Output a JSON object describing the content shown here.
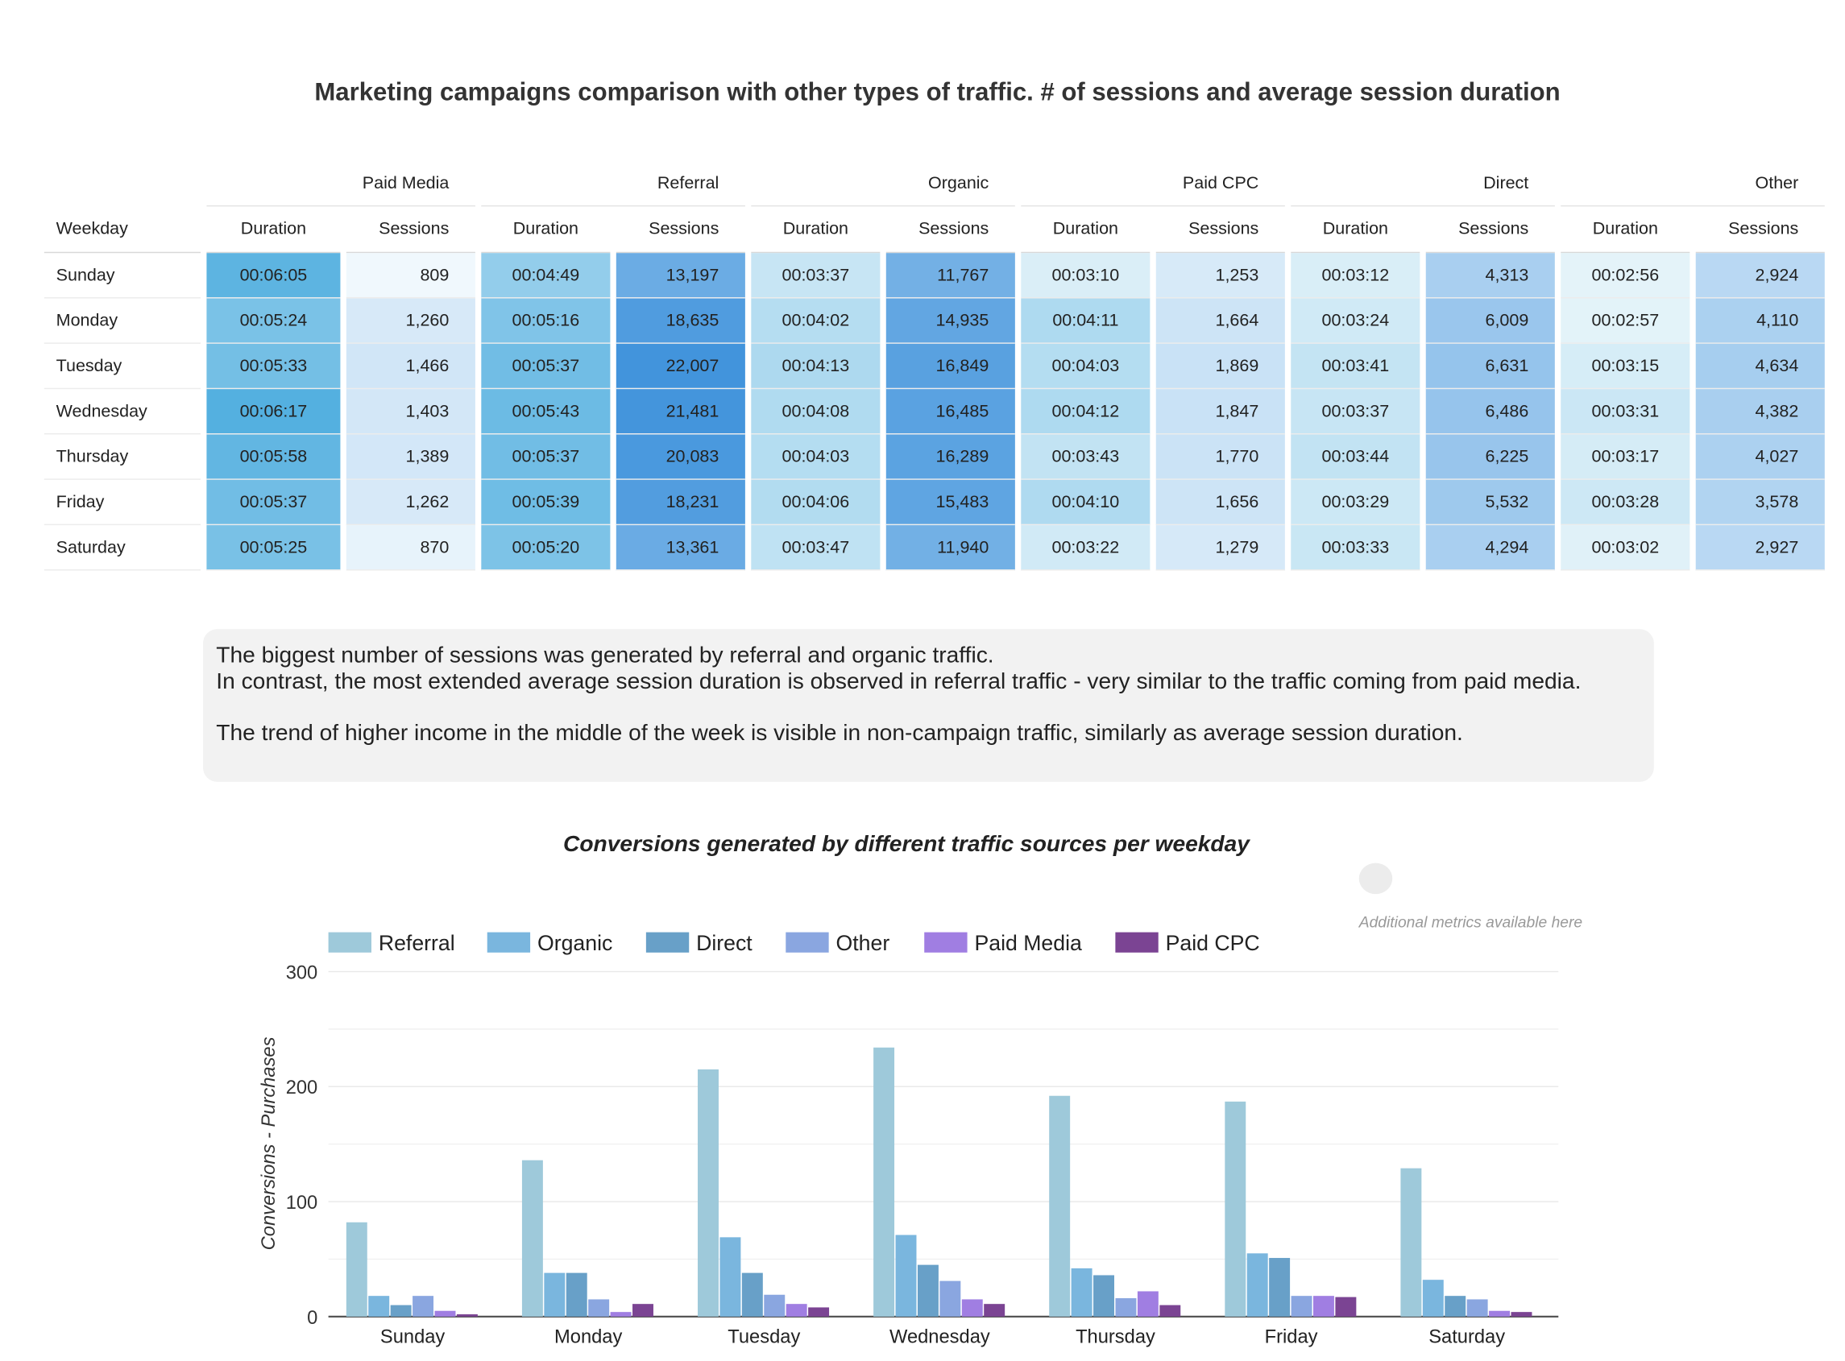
{
  "table": {
    "title": "Marketing campaigns comparison with other types of traffic. # of sessions and average session duration",
    "weekday_header": "Weekday",
    "duration_header": "Duration",
    "sessions_header": "Sessions",
    "groups": [
      "Paid Media",
      "Referral",
      "Organic",
      "Paid CPC",
      "Direct",
      "Other"
    ],
    "rows": [
      {
        "day": "Sunday",
        "cells": [
          [
            "00:06:05",
            "809"
          ],
          [
            "00:04:49",
            "13,197"
          ],
          [
            "00:03:37",
            "11,767"
          ],
          [
            "00:03:10",
            "1,253"
          ],
          [
            "00:03:12",
            "4,313"
          ],
          [
            "00:02:56",
            "2,924"
          ]
        ]
      },
      {
        "day": "Monday",
        "cells": [
          [
            "00:05:24",
            "1,260"
          ],
          [
            "00:05:16",
            "18,635"
          ],
          [
            "00:04:02",
            "14,935"
          ],
          [
            "00:04:11",
            "1,664"
          ],
          [
            "00:03:24",
            "6,009"
          ],
          [
            "00:02:57",
            "4,110"
          ]
        ]
      },
      {
        "day": "Tuesday",
        "cells": [
          [
            "00:05:33",
            "1,466"
          ],
          [
            "00:05:37",
            "22,007"
          ],
          [
            "00:04:13",
            "16,849"
          ],
          [
            "00:04:03",
            "1,869"
          ],
          [
            "00:03:41",
            "6,631"
          ],
          [
            "00:03:15",
            "4,634"
          ]
        ]
      },
      {
        "day": "Wednesday",
        "cells": [
          [
            "00:06:17",
            "1,403"
          ],
          [
            "00:05:43",
            "21,481"
          ],
          [
            "00:04:08",
            "16,485"
          ],
          [
            "00:04:12",
            "1,847"
          ],
          [
            "00:03:37",
            "6,486"
          ],
          [
            "00:03:31",
            "4,382"
          ]
        ]
      },
      {
        "day": "Thursday",
        "cells": [
          [
            "00:05:58",
            "1,389"
          ],
          [
            "00:05:37",
            "20,083"
          ],
          [
            "00:04:03",
            "16,289"
          ],
          [
            "00:03:43",
            "1,770"
          ],
          [
            "00:03:44",
            "6,225"
          ],
          [
            "00:03:17",
            "4,027"
          ]
        ]
      },
      {
        "day": "Friday",
        "cells": [
          [
            "00:05:37",
            "1,262"
          ],
          [
            "00:05:39",
            "18,231"
          ],
          [
            "00:04:06",
            "15,483"
          ],
          [
            "00:04:10",
            "1,656"
          ],
          [
            "00:03:29",
            "5,532"
          ],
          [
            "00:03:28",
            "3,578"
          ]
        ]
      },
      {
        "day": "Saturday",
        "cells": [
          [
            "00:05:25",
            "870"
          ],
          [
            "00:05:20",
            "13,361"
          ],
          [
            "00:03:47",
            "11,940"
          ],
          [
            "00:03:22",
            "1,279"
          ],
          [
            "00:03:33",
            "4,294"
          ],
          [
            "00:03:02",
            "2,927"
          ]
        ]
      }
    ]
  },
  "note": {
    "line1": "The biggest number of sessions was generated by referral and organic traffic.",
    "line2": "In contrast, the most extended average session duration is observed in referral traffic - very similar to the traffic coming from paid media.",
    "line3": "The trend of higher income in the middle of the week is visible in non-campaign traffic, similarly as average session duration."
  },
  "toggle": {
    "label": "Additional metrics available here"
  },
  "chart_data": {
    "type": "bar",
    "title": "Conversions generated by different traffic sources per weekday",
    "xlabel": "",
    "ylabel": "Conversions - Purchases",
    "ylim": [
      0,
      300
    ],
    "yticks": [
      0,
      100,
      200,
      300
    ],
    "grid": true,
    "legend": "top-left",
    "categories": [
      "Sunday",
      "Monday",
      "Tuesday",
      "Wednesday",
      "Thursday",
      "Friday",
      "Saturday"
    ],
    "series": [
      {
        "name": "Referral",
        "color": "#9ec9da",
        "values": [
          82,
          136,
          215,
          234,
          192,
          187,
          129
        ]
      },
      {
        "name": "Organic",
        "color": "#7ab6de",
        "values": [
          18,
          38,
          69,
          71,
          42,
          55,
          32
        ]
      },
      {
        "name": "Direct",
        "color": "#68a0c8",
        "values": [
          10,
          38,
          38,
          45,
          36,
          51,
          18
        ]
      },
      {
        "name": "Other",
        "color": "#8aa6e0",
        "values": [
          18,
          15,
          19,
          31,
          16,
          18,
          15
        ]
      },
      {
        "name": "Paid Media",
        "color": "#a07ee2",
        "values": [
          5,
          4,
          11,
          15,
          22,
          18,
          5
        ]
      },
      {
        "name": "Paid CPC",
        "color": "#7b4493",
        "values": [
          2,
          11,
          8,
          11,
          10,
          17,
          4
        ]
      }
    ]
  }
}
